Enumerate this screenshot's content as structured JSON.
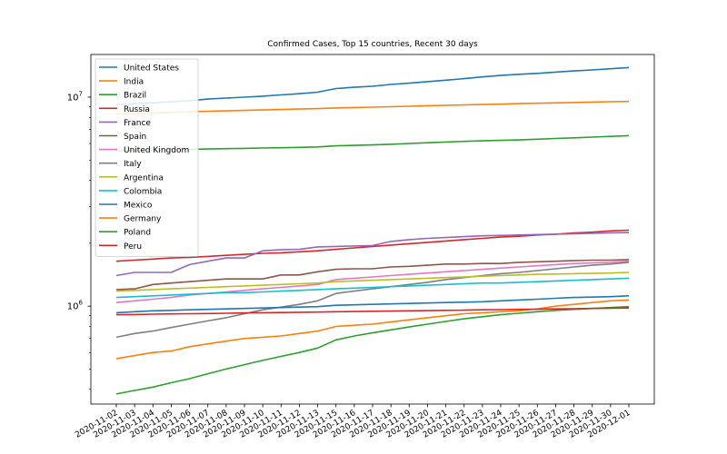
{
  "chart_data": {
    "type": "line",
    "title": "Confirmed Cases, Top 15 countries, Recent 30 days",
    "xlabel": "",
    "ylabel": "",
    "yscale": "log",
    "ylim": [
      340000,
      16000000
    ],
    "legend_position": "top-left",
    "grid": false,
    "y_ticks": [
      {
        "value": 1000000,
        "label": "10",
        "exp": "6"
      },
      {
        "value": 10000000,
        "label": "10",
        "exp": "7"
      }
    ],
    "x": [
      "2020-11-02",
      "2020-11-03",
      "2020-11-04",
      "2020-11-05",
      "2020-11-06",
      "2020-11-07",
      "2020-11-08",
      "2020-11-09",
      "2020-11-10",
      "2020-11-11",
      "2020-11-12",
      "2020-11-13",
      "2020-11-15",
      "2020-11-16",
      "2020-11-17",
      "2020-11-18",
      "2020-11-19",
      "2020-11-20",
      "2020-11-21",
      "2020-11-22",
      "2020-11-23",
      "2020-11-24",
      "2020-11-25",
      "2020-11-26",
      "2020-11-27",
      "2020-11-28",
      "2020-11-29",
      "2020-11-30",
      "2020-12-01"
    ],
    "series": [
      {
        "name": "United States",
        "color": "#1f77b4",
        "values": [
          9200000,
          9300000,
          9400000,
          9500000,
          9620000,
          9790000,
          9900000,
          10000000,
          10110000,
          10250000,
          10390000,
          10560000,
          11000000,
          11150000,
          11270000,
          11500000,
          11660000,
          11860000,
          12060000,
          12260000,
          12500000,
          12700000,
          12870000,
          12990000,
          13180000,
          13350000,
          13500000,
          13670000,
          13860000
        ]
      },
      {
        "name": "India",
        "color": "#ff7f0e",
        "values": [
          8310000,
          8360000,
          8410000,
          8460000,
          8510000,
          8560000,
          8600000,
          8640000,
          8680000,
          8730000,
          8770000,
          8810000,
          8880000,
          8920000,
          8960000,
          9000000,
          9050000,
          9100000,
          9140000,
          9180000,
          9220000,
          9260000,
          9310000,
          9350000,
          9390000,
          9430000,
          9470000,
          9510000,
          9540000
        ]
      },
      {
        "name": "Brazil",
        "color": "#2ca02c",
        "values": [
          5550000,
          5570000,
          5590000,
          5610000,
          5630000,
          5650000,
          5670000,
          5690000,
          5710000,
          5730000,
          5750000,
          5780000,
          5850000,
          5880000,
          5910000,
          5950000,
          6000000,
          6050000,
          6100000,
          6140000,
          6180000,
          6210000,
          6240000,
          6290000,
          6340000,
          6390000,
          6440000,
          6490000,
          6540000
        ]
      },
      {
        "name": "Russia",
        "color": "#d62728",
        "values": [
          1640000,
          1660000,
          1680000,
          1700000,
          1710000,
          1730000,
          1750000,
          1770000,
          1790000,
          1800000,
          1820000,
          1840000,
          1870000,
          1900000,
          1930000,
          1960000,
          1990000,
          2020000,
          2050000,
          2080000,
          2110000,
          2140000,
          2160000,
          2190000,
          2210000,
          2240000,
          2260000,
          2290000,
          2310000
        ]
      },
      {
        "name": "France",
        "color": "#9467bd",
        "values": [
          1400000,
          1450000,
          1450000,
          1450000,
          1580000,
          1640000,
          1700000,
          1700000,
          1840000,
          1860000,
          1870000,
          1920000,
          1930000,
          1940000,
          1950000,
          2040000,
          2080000,
          2110000,
          2130000,
          2150000,
          2170000,
          2180000,
          2190000,
          2200000,
          2210000,
          2220000,
          2230000,
          2240000,
          2250000
        ]
      },
      {
        "name": "Spain",
        "color": "#8c564b",
        "values": [
          1200000,
          1210000,
          1270000,
          1290000,
          1310000,
          1330000,
          1350000,
          1350000,
          1350000,
          1410000,
          1410000,
          1460000,
          1500000,
          1510000,
          1510000,
          1540000,
          1550000,
          1570000,
          1590000,
          1590000,
          1600000,
          1600000,
          1620000,
          1630000,
          1640000,
          1650000,
          1660000,
          1660000,
          1670000
        ]
      },
      {
        "name": "United Kingdom",
        "color": "#e377c2",
        "values": [
          1040000,
          1060000,
          1080000,
          1100000,
          1130000,
          1150000,
          1170000,
          1190000,
          1210000,
          1230000,
          1250000,
          1270000,
          1340000,
          1360000,
          1380000,
          1400000,
          1420000,
          1440000,
          1460000,
          1480000,
          1500000,
          1520000,
          1540000,
          1560000,
          1580000,
          1600000,
          1610000,
          1620000,
          1640000
        ]
      },
      {
        "name": "Italy",
        "color": "#7f7f7f",
        "values": [
          710000,
          740000,
          760000,
          790000,
          820000,
          850000,
          880000,
          920000,
          960000,
          990000,
          1020000,
          1060000,
          1150000,
          1180000,
          1210000,
          1240000,
          1270000,
          1300000,
          1340000,
          1370000,
          1400000,
          1430000,
          1450000,
          1480000,
          1510000,
          1540000,
          1570000,
          1590000,
          1620000
        ]
      },
      {
        "name": "Argentina",
        "color": "#bcbd22",
        "values": [
          1180000,
          1190000,
          1200000,
          1210000,
          1220000,
          1230000,
          1240000,
          1250000,
          1260000,
          1270000,
          1280000,
          1290000,
          1310000,
          1320000,
          1330000,
          1340000,
          1350000,
          1360000,
          1370000,
          1380000,
          1390000,
          1400000,
          1410000,
          1420000,
          1425000,
          1430000,
          1435000,
          1440000,
          1450000
        ]
      },
      {
        "name": "Colombia",
        "color": "#17becf",
        "values": [
          1100000,
          1110000,
          1120000,
          1130000,
          1140000,
          1150000,
          1160000,
          1160000,
          1170000,
          1180000,
          1190000,
          1200000,
          1210000,
          1220000,
          1230000,
          1240000,
          1250000,
          1260000,
          1270000,
          1280000,
          1290000,
          1290000,
          1300000,
          1310000,
          1320000,
          1330000,
          1340000,
          1350000,
          1360000
        ]
      },
      {
        "name": "Mexico",
        "color": "#1f77b4",
        "values": [
          930000,
          940000,
          950000,
          955000,
          960000,
          965000,
          970000,
          975000,
          980000,
          985000,
          990000,
          995000,
          1010000,
          1015000,
          1020000,
          1025000,
          1030000,
          1035000,
          1040000,
          1045000,
          1050000,
          1060000,
          1070000,
          1080000,
          1090000,
          1100000,
          1105000,
          1110000,
          1120000
        ]
      },
      {
        "name": "Germany",
        "color": "#ff7f0e",
        "values": [
          560000,
          580000,
          600000,
          610000,
          640000,
          660000,
          680000,
          700000,
          710000,
          720000,
          740000,
          760000,
          800000,
          810000,
          820000,
          840000,
          860000,
          880000,
          900000,
          920000,
          930000,
          940000,
          950000,
          970000,
          1000000,
          1020000,
          1040000,
          1060000,
          1070000
        ]
      },
      {
        "name": "Poland",
        "color": "#2ca02c",
        "values": [
          380000,
          395000,
          410000,
          430000,
          450000,
          475000,
          500000,
          525000,
          550000,
          575000,
          600000,
          630000,
          690000,
          720000,
          745000,
          770000,
          795000,
          820000,
          845000,
          870000,
          890000,
          910000,
          925000,
          940000,
          955000,
          965000,
          975000,
          985000,
          995000
        ]
      },
      {
        "name": "Peru",
        "color": "#d62728",
        "values": [
          910000,
          912000,
          915000,
          918000,
          920000,
          922000,
          925000,
          928000,
          930000,
          932000,
          935000,
          937000,
          940000,
          942000,
          945000,
          947000,
          950000,
          952000,
          955000,
          957000,
          960000,
          962000,
          965000,
          967000,
          970000,
          972000,
          975000,
          977000,
          980000
        ]
      }
    ]
  }
}
